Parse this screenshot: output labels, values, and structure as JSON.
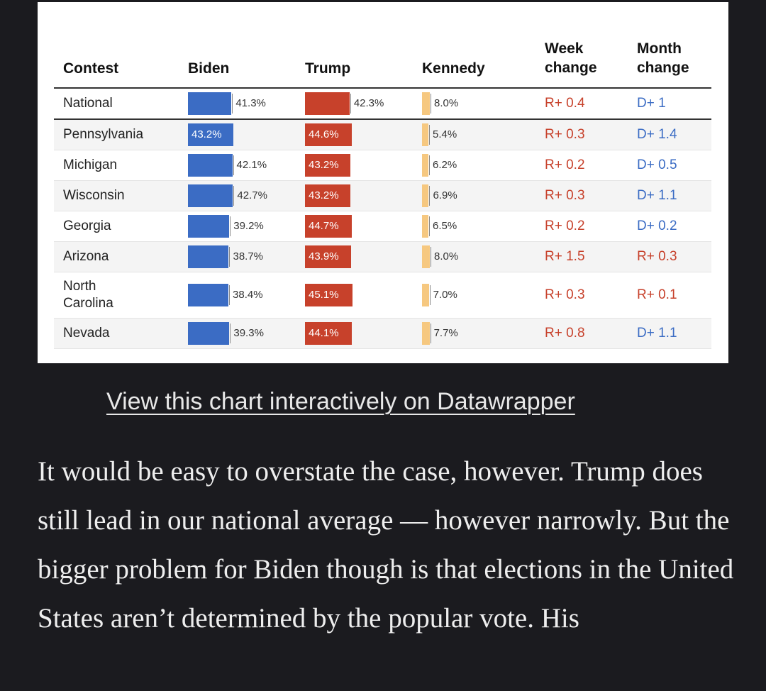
{
  "table": {
    "headers": {
      "contest": "Contest",
      "biden": "Biden",
      "trump": "Trump",
      "kennedy": "Kennedy",
      "week_change_1": "Week",
      "week_change_2": "change",
      "month_change_1": "Month",
      "month_change_2": "change"
    },
    "rows": [
      {
        "contest": "National",
        "biden": "41.3%",
        "trump": "42.3%",
        "kennedy": "8.0%",
        "week": "R+ 0.4",
        "month": "D+ 1"
      },
      {
        "contest": "Pennsylvania",
        "biden": "43.2%",
        "trump": "44.6%",
        "kennedy": "5.4%",
        "week": "R+ 0.3",
        "month": "D+ 1.4"
      },
      {
        "contest": "Michigan",
        "biden": "42.1%",
        "trump": "43.2%",
        "kennedy": "6.2%",
        "week": "R+ 0.2",
        "month": "D+ 0.5"
      },
      {
        "contest": "Wisconsin",
        "biden": "42.7%",
        "trump": "43.2%",
        "kennedy": "6.9%",
        "week": "R+ 0.3",
        "month": "D+ 1.1"
      },
      {
        "contest": "Georgia",
        "biden": "39.2%",
        "trump": "44.7%",
        "kennedy": "6.5%",
        "week": "R+ 0.2",
        "month": "D+ 0.2"
      },
      {
        "contest": "Arizona",
        "biden": "38.7%",
        "trump": "43.9%",
        "kennedy": "8.0%",
        "week": "R+ 1.5",
        "month": "R+ 0.3"
      },
      {
        "contest": "North Carolina",
        "biden": "38.4%",
        "trump": "45.1%",
        "kennedy": "7.0%",
        "week": "R+ 0.3",
        "month": "R+ 0.1"
      },
      {
        "contest": "Nevada",
        "biden": "39.3%",
        "trump": "44.1%",
        "kennedy": "7.7%",
        "week": "R+ 0.8",
        "month": "D+ 1.1"
      }
    ]
  },
  "colors": {
    "biden": "#3b6cc4",
    "trump": "#c7412b",
    "kennedy": "#f6c880",
    "background": "#1b1b1f"
  },
  "link_text": "View this chart interactively on Datawrapper",
  "paragraph": "It would be easy to overstate the case, however. Trump does still lead in our national average — however narrowly. But the bigger problem for Biden though is that elections in the United States aren’t determined by the popular vote. His"
}
